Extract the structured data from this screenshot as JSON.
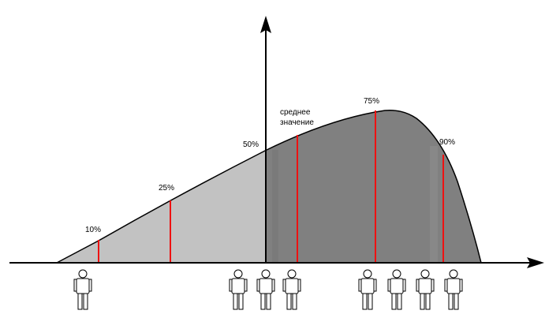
{
  "diagram": {
    "markers": [
      {
        "id": "p10",
        "label": "10%"
      },
      {
        "id": "p25",
        "label": "25%"
      },
      {
        "id": "p50",
        "label": "50%"
      },
      {
        "id": "mean",
        "label_line1": "среднее",
        "label_line2": "значение"
      },
      {
        "id": "p75",
        "label": "75%"
      },
      {
        "id": "p90",
        "label": "90%"
      }
    ],
    "people_count": 8,
    "colors": {
      "light_fill": "#c2c2c2",
      "dark_fill": "#808080",
      "red_line": "#ee1111",
      "axis": "#000000"
    }
  }
}
